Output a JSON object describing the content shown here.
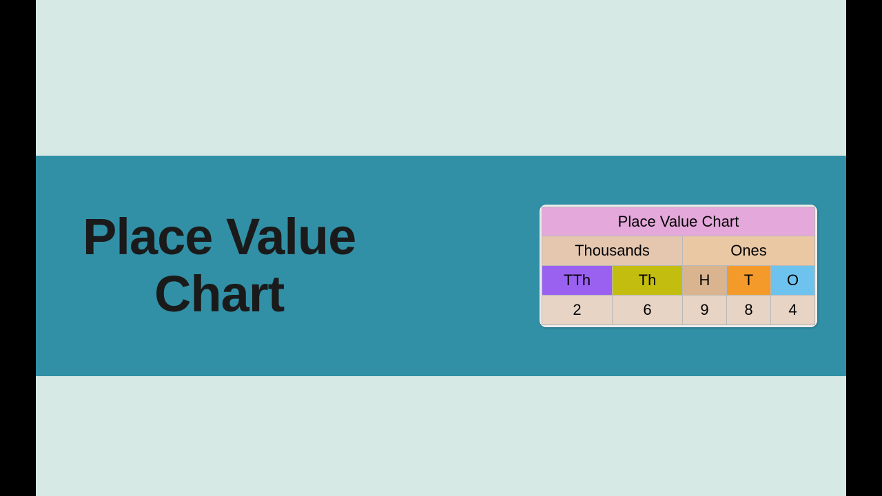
{
  "layout": {
    "pillarbox_color": "#000000",
    "stage_bg": "#d6e9e4",
    "banner_bg": "#3190a6",
    "heading_color": "#1a1a1a",
    "card_bg": "#e9e9e9",
    "cell_border": "#b8b8b8"
  },
  "heading": {
    "line1": "Place Value",
    "line2": "Chart"
  },
  "chart": {
    "title": "Place Value Chart",
    "title_bg": "#e4a8db",
    "groups": [
      {
        "label": "Thousands",
        "bg": "#e5c7b0"
      },
      {
        "label": "Ones",
        "bg": "#eac8a4"
      }
    ],
    "columns": [
      {
        "label": "TTh",
        "bg": "#9a61f1",
        "class": "c-tth"
      },
      {
        "label": "Th",
        "bg": "#c3bd0f",
        "class": "c-th"
      },
      {
        "label": "H",
        "bg": "#d9b48e",
        "class": "c-h"
      },
      {
        "label": "T",
        "bg": "#f39a2a",
        "class": "c-t"
      },
      {
        "label": "O",
        "bg": "#6ec3ee",
        "class": "c-o"
      }
    ],
    "values_bg": "#e7d4c5",
    "values": [
      "2",
      "6",
      "9",
      "8",
      "4"
    ]
  }
}
